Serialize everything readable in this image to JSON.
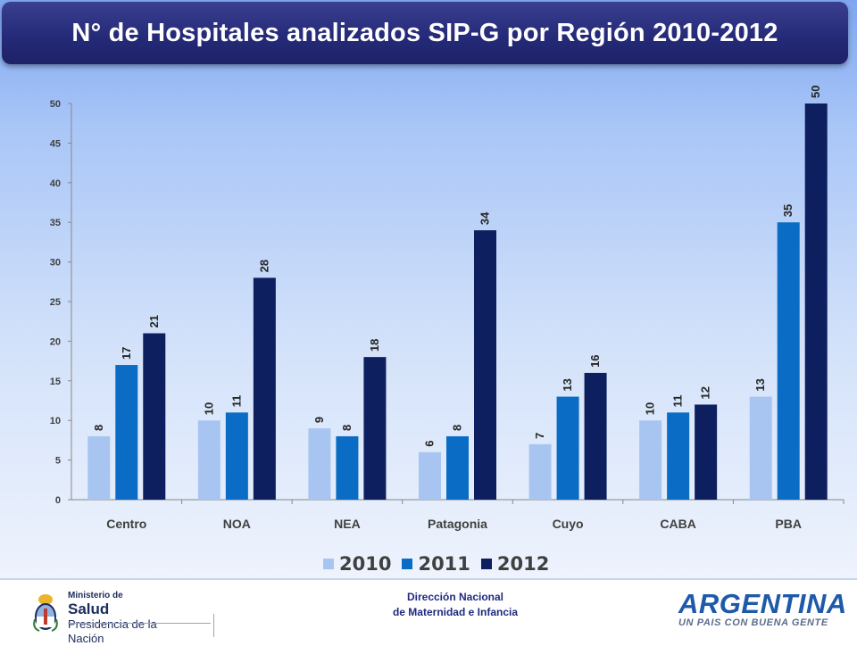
{
  "title": "N° de Hospitales analizados SIP-G por Región 2010-2012",
  "colors": {
    "2010": "#a8c5f2",
    "2011": "#0a6cc4",
    "2012": "#0d1f5e",
    "title_bg": "#252a79"
  },
  "chart_data": {
    "type": "bar",
    "title": "N° de Hospitales analizados SIP-G por Región 2010-2012",
    "categories": [
      "Centro",
      "NOA",
      "NEA",
      "Patagonia",
      "Cuyo",
      "CABA",
      "PBA"
    ],
    "series": [
      {
        "name": "2010",
        "values": [
          8,
          10,
          9,
          6,
          7,
          10,
          13
        ]
      },
      {
        "name": "2011",
        "values": [
          17,
          11,
          8,
          8,
          13,
          11,
          35
        ]
      },
      {
        "name": "2012",
        "values": [
          21,
          28,
          18,
          34,
          16,
          12,
          50
        ]
      }
    ],
    "ylim": [
      0,
      50
    ],
    "yticks": [
      0,
      5,
      10,
      15,
      20,
      25,
      30,
      35,
      40,
      45,
      50
    ],
    "xlabel": "",
    "ylabel": "",
    "legend": "bottom",
    "grid": false,
    "data_labels": true
  },
  "legend": [
    {
      "label": "2010",
      "color": "#a8c5f2"
    },
    {
      "label": "2011",
      "color": "#0a6cc4"
    },
    {
      "label": "2012",
      "color": "#0d1f5e"
    }
  ],
  "footer": {
    "ministry_line1": "Ministerio de",
    "ministry_line2": "Salud",
    "ministry_line3": "Presidencia de la Nación",
    "center_line1": "Dirección Nacional",
    "center_line2": "de Maternidad e Infancia",
    "brand": "ARGENTINA",
    "brand_tagline": "UN PAIS CON BUENA GENTE",
    "shield_icon": "argentina-coat-of-arms-icon"
  }
}
